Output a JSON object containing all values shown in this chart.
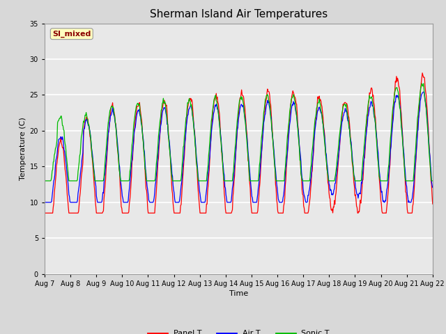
{
  "title": "Sherman Island Air Temperatures",
  "xlabel": "Time",
  "ylabel": "Temperature (C)",
  "ylim": [
    0,
    35
  ],
  "yticks": [
    0,
    5,
    10,
    15,
    20,
    25,
    30,
    35
  ],
  "annotation_text": "SI_mixed",
  "annotation_color": "#8B0000",
  "annotation_bg": "#FFFFC0",
  "fig_bg_color": "#D8D8D8",
  "plot_bg": "#E8E8E8",
  "grid_color": "#FFFFFF",
  "line_colors": {
    "panel": "#FF0000",
    "air": "#0000FF",
    "sonic": "#00BB00"
  },
  "legend_labels": [
    "Panel T",
    "Air T",
    "Sonic T"
  ],
  "figsize": [
    6.4,
    4.8
  ],
  "dpi": 100,
  "xlim": [
    0,
    15
  ],
  "xtick_labels": [
    "Aug 7",
    "Aug 8",
    "Aug 9",
    "Aug 10",
    "Aug 11",
    "Aug 12",
    "Aug 13",
    "Aug 14",
    "Aug 15",
    "Aug 16",
    "Aug 17",
    "Aug 18",
    "Aug 19",
    "Aug 20",
    "Aug 21",
    "Aug 22"
  ]
}
